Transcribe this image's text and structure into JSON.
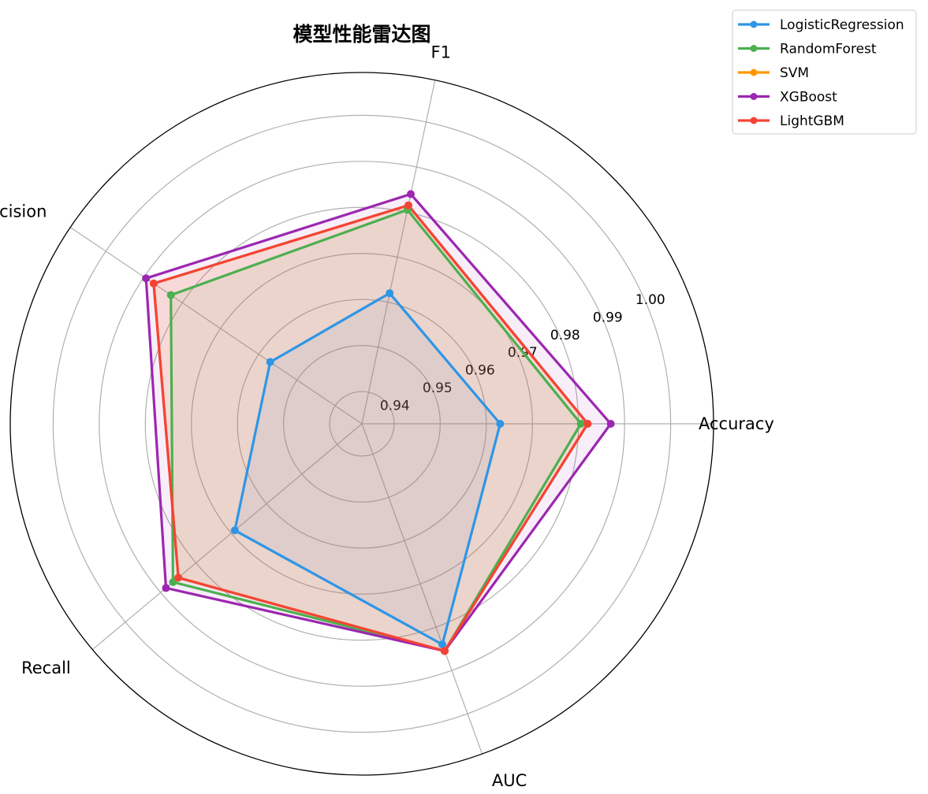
{
  "chart_data": {
    "type": "radar",
    "title": "模型性能雷达图",
    "categories": [
      "Accuracy",
      "F1",
      "Precision",
      "Recall",
      "AUC"
    ],
    "radial_ticks": [
      "0.94",
      "0.95",
      "0.96",
      "0.97",
      "0.98",
      "0.99",
      "1.00"
    ],
    "radial_tick_values": [
      0.94,
      0.95,
      0.96,
      0.97,
      0.98,
      0.99,
      1.0
    ],
    "rlim": [
      0.933,
      1.0093
    ],
    "grid": true,
    "legend_position": "top-right",
    "series": [
      {
        "name": "LogisticRegression",
        "color": "#2e96e6",
        "values": [
          0.963,
          0.962,
          0.957,
          0.969,
          0.984
        ]
      },
      {
        "name": "RandomForest",
        "color": "#4caf50",
        "values": [
          0.9805,
          0.9805,
          0.983,
          0.9865,
          0.9855
        ]
      },
      {
        "name": "SVM",
        "color": "#ff9800",
        "values": [
          0.982,
          0.9815,
          0.9875,
          0.985,
          0.9855
        ]
      },
      {
        "name": "XGBoost",
        "color": "#9c27b0",
        "values": [
          0.987,
          0.984,
          0.9895,
          0.9885,
          0.9855
        ]
      },
      {
        "name": "LightGBM",
        "color": "#f44336",
        "values": [
          0.982,
          0.9815,
          0.9875,
          0.985,
          0.9855
        ]
      }
    ]
  }
}
